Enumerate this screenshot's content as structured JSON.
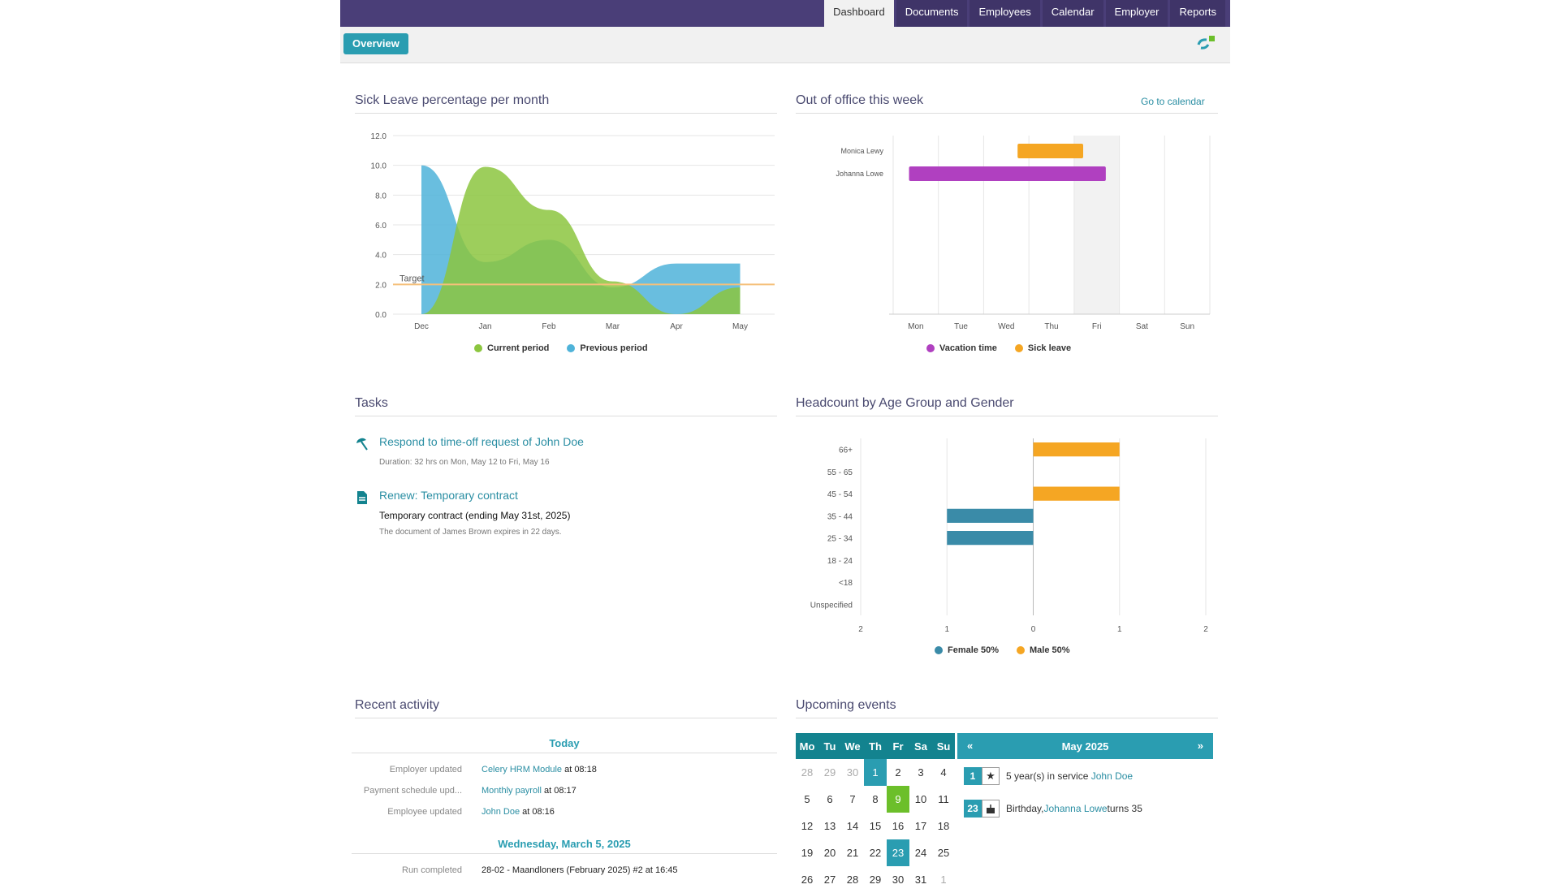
{
  "nav": {
    "tabs": [
      {
        "label": "Dashboard",
        "active": true
      },
      {
        "label": "Documents"
      },
      {
        "label": "Employees"
      },
      {
        "label": "Calendar"
      },
      {
        "label": "Employer"
      },
      {
        "label": "Reports"
      }
    ],
    "overview_label": "Overview"
  },
  "sick_leave": {
    "title": "Sick Leave percentage per month",
    "target_label": "Target",
    "legend": [
      {
        "label": "Current period",
        "color": "#8cc63f"
      },
      {
        "label": "Previous period",
        "color": "#4fb3d9"
      }
    ]
  },
  "out_of_office": {
    "title": "Out of office this week",
    "go_to_calendar": "Go to calendar",
    "legend": [
      {
        "label": "Vacation time",
        "color": "#b040c0"
      },
      {
        "label": "Sick leave",
        "color": "#f5a623"
      }
    ]
  },
  "tasks": {
    "title": "Tasks",
    "items": [
      {
        "title": "Respond to time-off request of John Doe",
        "detail": "Duration: 32 hrs on Mon, May 12 to Fri, May 16",
        "icon": "beach-umbrella-icon"
      },
      {
        "title": "Renew: Temporary contract",
        "bold": "Temporary contract (ending May 31st, 2025)",
        "detail": "The document of James Brown expires in 22 days.",
        "icon": "document-icon"
      }
    ]
  },
  "headcount": {
    "title": "Headcount by Age Group and Gender",
    "legend": [
      {
        "label": "Female 50%",
        "color": "#3a8ba8"
      },
      {
        "label": "Male 50%",
        "color": "#f5a623"
      }
    ]
  },
  "recent_activity": {
    "title": "Recent activity",
    "groups": [
      {
        "heading": "Today",
        "rows": [
          {
            "label": "Employer updated",
            "link": "Celery HRM Module",
            "suffix": " at 08:18"
          },
          {
            "label": "Payment schedule upd...",
            "link": "Monthly payroll",
            "suffix": " at 08:17"
          },
          {
            "label": "Employee updated",
            "link": "John Doe",
            "suffix": " at 08:16"
          }
        ]
      },
      {
        "heading": "Wednesday, March 5, 2025",
        "rows": [
          {
            "label": "Run completed",
            "link": "",
            "suffix": "28-02 - Maandloners (February 2025) #2 at 16:45"
          }
        ]
      }
    ]
  },
  "upcoming": {
    "title": "Upcoming events",
    "month": "May 2025",
    "prev": "«",
    "next": "»",
    "weekdays": [
      "Mo",
      "Tu",
      "We",
      "Th",
      "Fr",
      "Sa",
      "Su"
    ],
    "weeks": [
      [
        "28",
        "29",
        "30",
        "1",
        "2",
        "3",
        "4"
      ],
      [
        "5",
        "6",
        "7",
        "8",
        "9",
        "10",
        "11"
      ],
      [
        "12",
        "13",
        "14",
        "15",
        "16",
        "17",
        "18"
      ],
      [
        "19",
        "20",
        "21",
        "22",
        "23",
        "24",
        "25"
      ],
      [
        "26",
        "27",
        "28",
        "29",
        "30",
        "31",
        "1"
      ]
    ],
    "events": [
      {
        "day": "1",
        "icon": "star-icon",
        "glyph": "★",
        "text": "5 year(s) in service ",
        "link": "John Doe",
        "after": ""
      },
      {
        "day": "23",
        "icon": "birthday-cake-icon",
        "glyph": "🎂",
        "text": "Birthday, ",
        "link": "Johanna Lowe",
        "after": " turns 35"
      }
    ]
  },
  "chart_data": [
    {
      "type": "area",
      "title": "Sick Leave percentage per month",
      "categories": [
        "Dec",
        "Jan",
        "Feb",
        "Mar",
        "Apr",
        "May"
      ],
      "ylim": [
        0,
        12
      ],
      "yticks": [
        "0.0",
        "2.0",
        "4.0",
        "6.0",
        "8.0",
        "10.0",
        "12.0"
      ],
      "target": 2.0,
      "series": [
        {
          "name": "Current period",
          "values": [
            0,
            9.9,
            7.0,
            2.2,
            0,
            1.8
          ],
          "color": "#8cc63f"
        },
        {
          "name": "Previous period",
          "values": [
            10.0,
            3.5,
            5.0,
            1.8,
            3.4,
            3.4
          ],
          "color": "#4fb3d9"
        }
      ]
    },
    {
      "type": "bar",
      "title": "Out of office this week",
      "categories": [
        "Mon",
        "Tue",
        "Wed",
        "Thu",
        "Fri",
        "Sat",
        "Sun"
      ],
      "people": [
        "Monica Lewy",
        "Johanna Lowe"
      ],
      "highlight_day": "Fri",
      "series": [
        {
          "name": "Sick leave",
          "person": "Monica Lewy",
          "start": 2.75,
          "end": 4.2,
          "color": "#f5a623"
        },
        {
          "name": "Vacation time",
          "person": "Johanna Lowe",
          "start": 0.35,
          "end": 4.7,
          "color": "#b040c0"
        }
      ]
    },
    {
      "type": "bar",
      "title": "Headcount by Age Group and Gender",
      "categories": [
        "66+",
        "55 - 65",
        "45 - 54",
        "35 - 44",
        "25 - 34",
        "18 - 24",
        "<18",
        "Unspecified"
      ],
      "xticks": [
        "2",
        "1",
        "0",
        "1",
        "2"
      ],
      "xlim": [
        -2,
        2
      ],
      "series": [
        {
          "name": "Female 50%",
          "values": [
            0,
            0,
            0,
            1,
            1,
            0,
            0,
            0
          ],
          "color": "#3a8ba8"
        },
        {
          "name": "Male 50%",
          "values": [
            1,
            0,
            1,
            0,
            0,
            0,
            0,
            0
          ],
          "color": "#f5a623"
        }
      ]
    }
  ]
}
